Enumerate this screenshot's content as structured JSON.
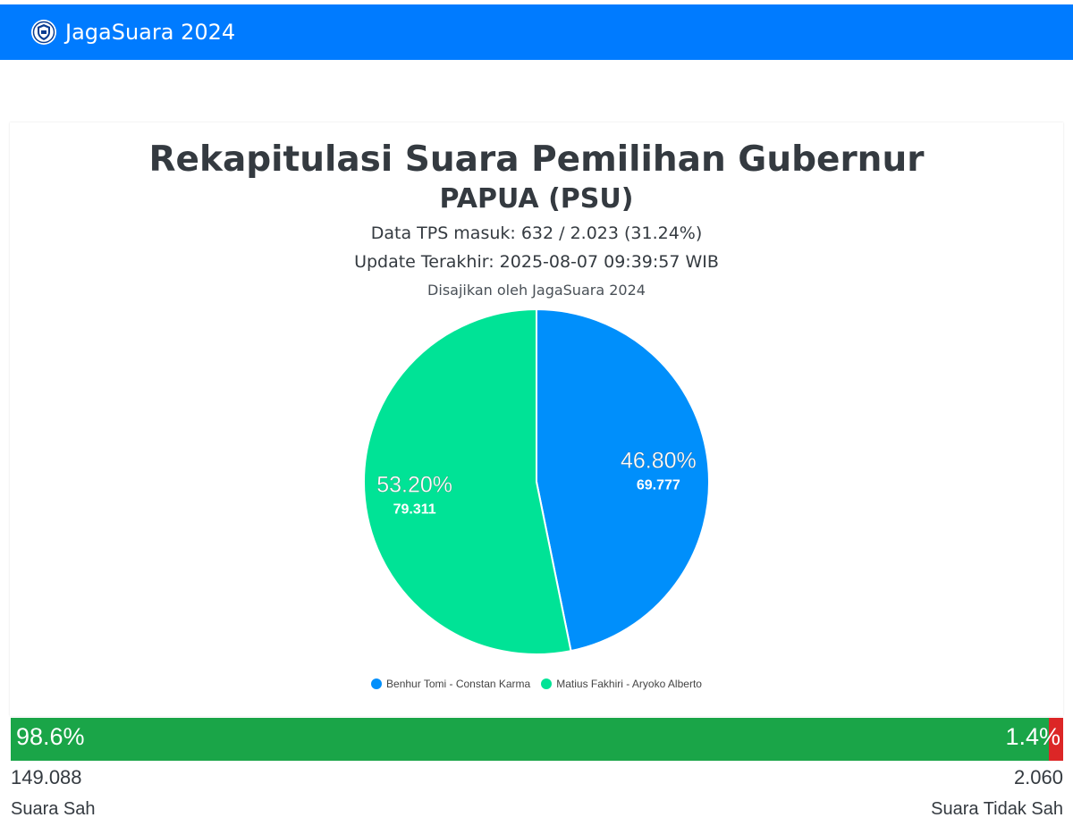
{
  "app": {
    "brand": "JagaSuara 2024"
  },
  "header": {
    "title": "Rekapitulasi Suara Pemilihan Gubernur",
    "region": "PAPUA (PSU)",
    "tps": "Data TPS masuk: 632 / 2.023 (31.24%)",
    "update": "Update Terakhir: 2025-08-07 09:39:57 WIB",
    "presented_by": "Disajikan oleh JagaSuara 2024"
  },
  "chart_data": {
    "type": "pie",
    "slices": [
      {
        "name": "Benhur Tomi - Constan Karma",
        "value": 69777,
        "value_label": "69.777",
        "percent_label": "46.80%",
        "color": "#008ffb"
      },
      {
        "name": "Matius Fakhiri - Aryoko Alberto",
        "value": 79311,
        "value_label": "79.311",
        "percent_label": "53.20%",
        "color": "#00e396"
      }
    ],
    "legend_position": "bottom"
  },
  "votes": {
    "valid_percent": 98.6,
    "valid_percent_label": "98.6%",
    "invalid_percent": 1.4,
    "invalid_percent_label": "1.4%",
    "valid_count": "149.088",
    "invalid_count": "2.060",
    "valid_caption": "Suara Sah",
    "invalid_caption": "Suara Tidak Sah",
    "valid_color": "#1aa548",
    "invalid_color": "#dc2626"
  }
}
